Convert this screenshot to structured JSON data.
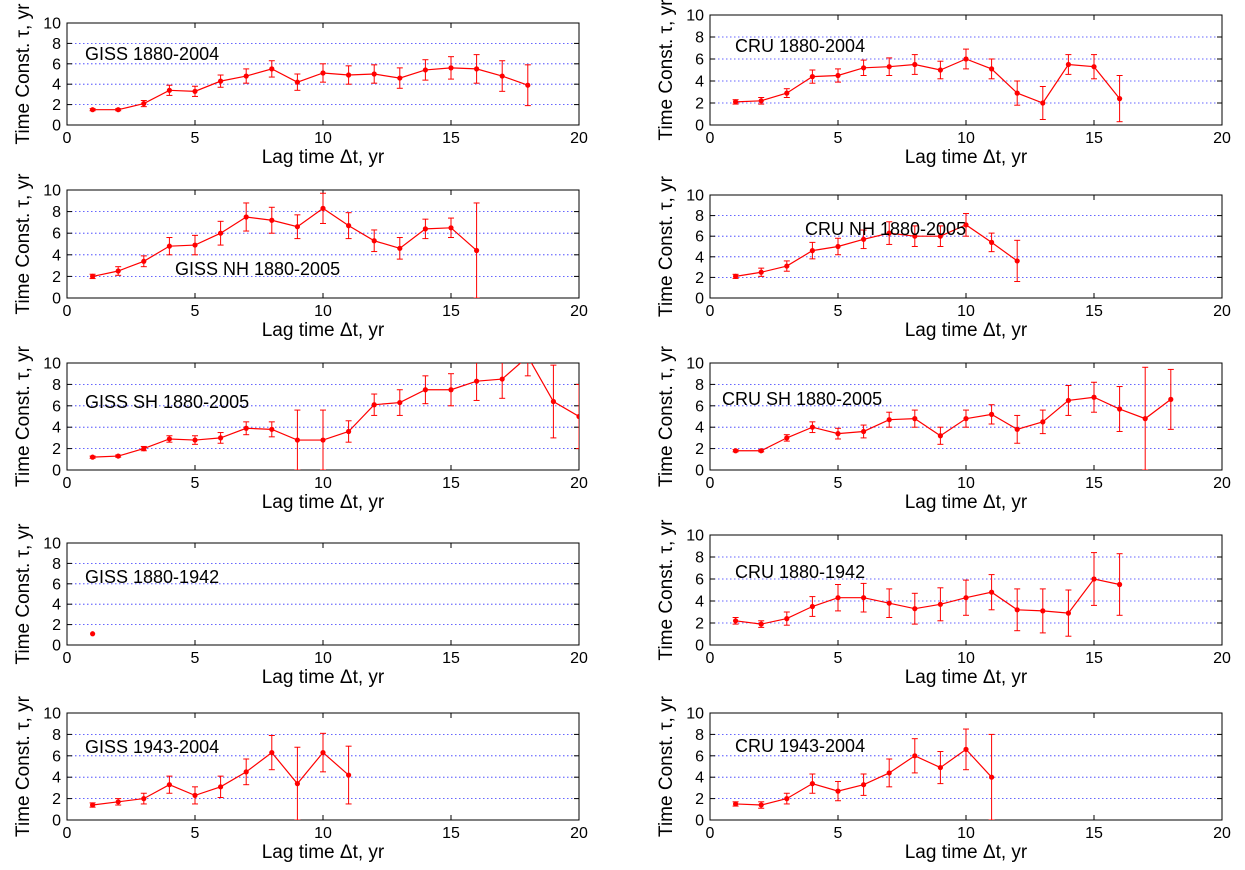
{
  "chart_data": [
    {
      "type": "line",
      "title": "GISS 1880-2004",
      "xlabel": "Lag time Δt, yr",
      "ylabel": "Time Const. τ, yr",
      "xlim": [
        0,
        20
      ],
      "ylim": [
        0,
        10
      ],
      "xticks": [
        0,
        5,
        10,
        15,
        20
      ],
      "yticks": [
        0,
        2,
        4,
        6,
        8,
        10
      ],
      "grid": "horizontal dotted",
      "color": "#ff0000",
      "x": [
        1,
        2,
        3,
        4,
        5,
        6,
        7,
        8,
        9,
        10,
        11,
        12,
        13,
        14,
        15,
        16,
        17,
        18
      ],
      "y": [
        1.5,
        1.5,
        2.1,
        3.4,
        3.3,
        4.3,
        4.8,
        5.5,
        4.2,
        5.1,
        4.9,
        5.0,
        4.6,
        5.4,
        5.6,
        5.5,
        4.8,
        3.9
      ],
      "err": [
        0.1,
        0.1,
        0.3,
        0.5,
        0.5,
        0.6,
        0.7,
        0.8,
        0.8,
        0.9,
        0.9,
        0.9,
        1.0,
        1.0,
        1.1,
        1.4,
        1.5,
        2.0
      ]
    },
    {
      "type": "line",
      "title": "CRU 1880-2004",
      "xlabel": "Lag time Δt, yr",
      "ylabel": "Time Const. τ, yr",
      "xlim": [
        0,
        20
      ],
      "ylim": [
        0,
        10
      ],
      "xticks": [
        0,
        5,
        10,
        15,
        20
      ],
      "yticks": [
        0,
        2,
        4,
        6,
        8,
        10
      ],
      "grid": "horizontal dotted",
      "color": "#ff0000",
      "x": [
        1,
        2,
        3,
        4,
        5,
        6,
        7,
        8,
        9,
        10,
        11,
        12,
        13,
        14,
        15,
        16
      ],
      "y": [
        2.1,
        2.2,
        2.9,
        4.4,
        4.5,
        5.2,
        5.3,
        5.5,
        5.0,
        6.0,
        5.1,
        2.9,
        2.0,
        5.5,
        5.3,
        2.4
      ],
      "err": [
        0.2,
        0.3,
        0.4,
        0.6,
        0.6,
        0.7,
        0.8,
        0.9,
        0.8,
        0.9,
        0.9,
        1.1,
        1.5,
        0.9,
        1.1,
        2.1
      ]
    },
    {
      "type": "line",
      "title": "GISS NH 1880-2005",
      "xlabel": "Lag time Δt, yr",
      "ylabel": "Time Const. τ, yr",
      "xlim": [
        0,
        20
      ],
      "ylim": [
        0,
        10
      ],
      "xticks": [
        0,
        5,
        10,
        15,
        20
      ],
      "yticks": [
        0,
        2,
        4,
        6,
        8,
        10
      ],
      "grid": "horizontal dotted",
      "color": "#ff0000",
      "x": [
        1,
        2,
        3,
        4,
        5,
        6,
        7,
        8,
        9,
        10,
        11,
        12,
        13,
        14,
        15,
        16
      ],
      "y": [
        2.0,
        2.5,
        3.4,
        4.8,
        4.9,
        6.0,
        7.5,
        7.2,
        6.6,
        8.3,
        6.7,
        5.3,
        4.6,
        6.4,
        6.5,
        4.4
      ],
      "err": [
        0.2,
        0.4,
        0.5,
        0.8,
        0.9,
        1.1,
        1.3,
        1.2,
        1.1,
        1.4,
        1.2,
        1.0,
        1.0,
        0.9,
        0.9,
        4.4
      ]
    },
    {
      "type": "line",
      "title": "CRU NH 1880-2005",
      "xlabel": "Lag time Δt, yr",
      "ylabel": "Time Const. τ, yr",
      "xlim": [
        0,
        20
      ],
      "ylim": [
        0,
        10
      ],
      "xticks": [
        0,
        5,
        10,
        15,
        20
      ],
      "yticks": [
        0,
        2,
        4,
        6,
        8,
        10
      ],
      "grid": "horizontal dotted",
      "color": "#ff0000",
      "x": [
        1,
        2,
        3,
        4,
        5,
        6,
        7,
        8,
        9,
        10,
        11,
        12
      ],
      "y": [
        2.1,
        2.5,
        3.1,
        4.6,
        5.0,
        5.7,
        6.3,
        6.0,
        6.0,
        7.1,
        5.4,
        3.6
      ],
      "err": [
        0.2,
        0.4,
        0.5,
        0.8,
        0.8,
        0.9,
        1.1,
        1.0,
        1.0,
        1.1,
        0.9,
        2.0
      ]
    },
    {
      "type": "line",
      "title": "GISS SH 1880-2005",
      "xlabel": "Lag time Δt, yr",
      "ylabel": "Time Const. τ, yr",
      "xlim": [
        0,
        20
      ],
      "ylim": [
        0,
        10
      ],
      "xticks": [
        0,
        5,
        10,
        15,
        20
      ],
      "yticks": [
        0,
        2,
        4,
        6,
        8,
        10
      ],
      "grid": "horizontal dotted",
      "color": "#ff0000",
      "x": [
        1,
        2,
        3,
        4,
        5,
        6,
        7,
        8,
        9,
        10,
        11,
        12,
        13,
        14,
        15,
        16,
        17,
        18,
        19,
        20
      ],
      "y": [
        1.2,
        1.3,
        2.0,
        2.9,
        2.8,
        3.0,
        3.9,
        3.8,
        2.8,
        2.8,
        3.6,
        6.1,
        6.3,
        7.5,
        7.5,
        8.3,
        8.5,
        10.6,
        6.4,
        5.0
      ],
      "err": [
        0.1,
        0.1,
        0.2,
        0.3,
        0.4,
        0.5,
        0.6,
        0.7,
        2.8,
        2.8,
        1.0,
        1.0,
        1.2,
        1.3,
        1.5,
        1.8,
        1.8,
        1.8,
        3.4,
        3.0
      ]
    },
    {
      "type": "line",
      "title": "CRU SH 1880-2005",
      "xlabel": "Lag time Δt, yr",
      "ylabel": "Time Const. τ, yr",
      "xlim": [
        0,
        20
      ],
      "ylim": [
        0,
        10
      ],
      "xticks": [
        0,
        5,
        10,
        15,
        20
      ],
      "yticks": [
        0,
        2,
        4,
        6,
        8,
        10
      ],
      "grid": "horizontal dotted",
      "color": "#ff0000",
      "x": [
        1,
        2,
        3,
        4,
        5,
        6,
        7,
        8,
        9,
        10,
        11,
        12,
        13,
        14,
        15,
        16,
        17,
        18
      ],
      "y": [
        1.8,
        1.8,
        3.0,
        4.0,
        3.4,
        3.6,
        4.7,
        4.8,
        3.2,
        4.8,
        5.2,
        3.8,
        4.5,
        6.5,
        6.8,
        5.7,
        4.8,
        6.6
      ],
      "err": [
        0.1,
        0.1,
        0.3,
        0.5,
        0.5,
        0.6,
        0.7,
        0.8,
        0.8,
        0.8,
        0.9,
        1.3,
        1.1,
        1.4,
        1.4,
        2.1,
        4.8,
        2.8
      ]
    },
    {
      "type": "scatter",
      "title": "GISS 1880-1942",
      "xlabel": "Lag time Δt, yr",
      "ylabel": "Time Const. τ, yr",
      "xlim": [
        0,
        20
      ],
      "ylim": [
        0,
        10
      ],
      "xticks": [
        0,
        5,
        10,
        15,
        20
      ],
      "yticks": [
        0,
        2,
        4,
        6,
        8,
        10
      ],
      "grid": "horizontal dotted",
      "color": "#ff0000",
      "x": [
        1
      ],
      "y": [
        1.1
      ],
      "err": [
        0
      ]
    },
    {
      "type": "line",
      "title": "CRU 1880-1942",
      "xlabel": "Lag time Δt, yr",
      "ylabel": "Time Const. τ, yr",
      "xlim": [
        0,
        20
      ],
      "ylim": [
        0,
        10
      ],
      "xticks": [
        0,
        5,
        10,
        15,
        20
      ],
      "yticks": [
        0,
        2,
        4,
        6,
        8,
        10
      ],
      "grid": "horizontal dotted",
      "color": "#ff0000",
      "x": [
        1,
        2,
        3,
        4,
        5,
        6,
        7,
        8,
        9,
        10,
        11,
        12,
        13,
        14,
        15,
        16
      ],
      "y": [
        2.2,
        1.9,
        2.4,
        3.5,
        4.3,
        4.3,
        3.8,
        3.3,
        3.7,
        4.3,
        4.8,
        3.2,
        3.1,
        2.9,
        6.0,
        5.5
      ],
      "err": [
        0.3,
        0.3,
        0.6,
        0.9,
        1.2,
        1.3,
        1.3,
        1.4,
        1.5,
        1.6,
        1.6,
        1.9,
        2.0,
        2.1,
        2.4,
        2.8
      ]
    },
    {
      "type": "line",
      "title": "GISS 1943-2004",
      "xlabel": "Lag time Δt, yr",
      "ylabel": "Time Const. τ, yr",
      "xlim": [
        0,
        20
      ],
      "ylim": [
        0,
        10
      ],
      "xticks": [
        0,
        5,
        10,
        15,
        20
      ],
      "yticks": [
        0,
        2,
        4,
        6,
        8,
        10
      ],
      "grid": "horizontal dotted",
      "color": "#ff0000",
      "x": [
        1,
        2,
        3,
        4,
        5,
        6,
        7,
        8,
        9,
        10,
        11
      ],
      "y": [
        1.4,
        1.7,
        2.0,
        3.3,
        2.3,
        3.1,
        4.5,
        6.3,
        3.4,
        6.3,
        4.2
      ],
      "err": [
        0.2,
        0.3,
        0.5,
        0.8,
        0.8,
        1.0,
        1.2,
        1.6,
        3.4,
        1.8,
        2.7
      ]
    },
    {
      "type": "line",
      "title": "CRU 1943-2004",
      "xlabel": "Lag time Δt, yr",
      "ylabel": "Time Const. τ, yr",
      "xlim": [
        0,
        20
      ],
      "ylim": [
        0,
        10
      ],
      "xticks": [
        0,
        5,
        10,
        15,
        20
      ],
      "yticks": [
        0,
        2,
        4,
        6,
        8,
        10
      ],
      "grid": "horizontal dotted",
      "color": "#ff0000",
      "x": [
        1,
        2,
        3,
        4,
        5,
        6,
        7,
        8,
        9,
        10,
        11
      ],
      "y": [
        1.5,
        1.4,
        2.0,
        3.4,
        2.7,
        3.3,
        4.4,
        6.0,
        4.9,
        6.6,
        4.0
      ],
      "err": [
        0.2,
        0.3,
        0.5,
        0.9,
        0.9,
        1.0,
        1.3,
        1.6,
        1.5,
        1.9,
        4.0
      ]
    }
  ]
}
